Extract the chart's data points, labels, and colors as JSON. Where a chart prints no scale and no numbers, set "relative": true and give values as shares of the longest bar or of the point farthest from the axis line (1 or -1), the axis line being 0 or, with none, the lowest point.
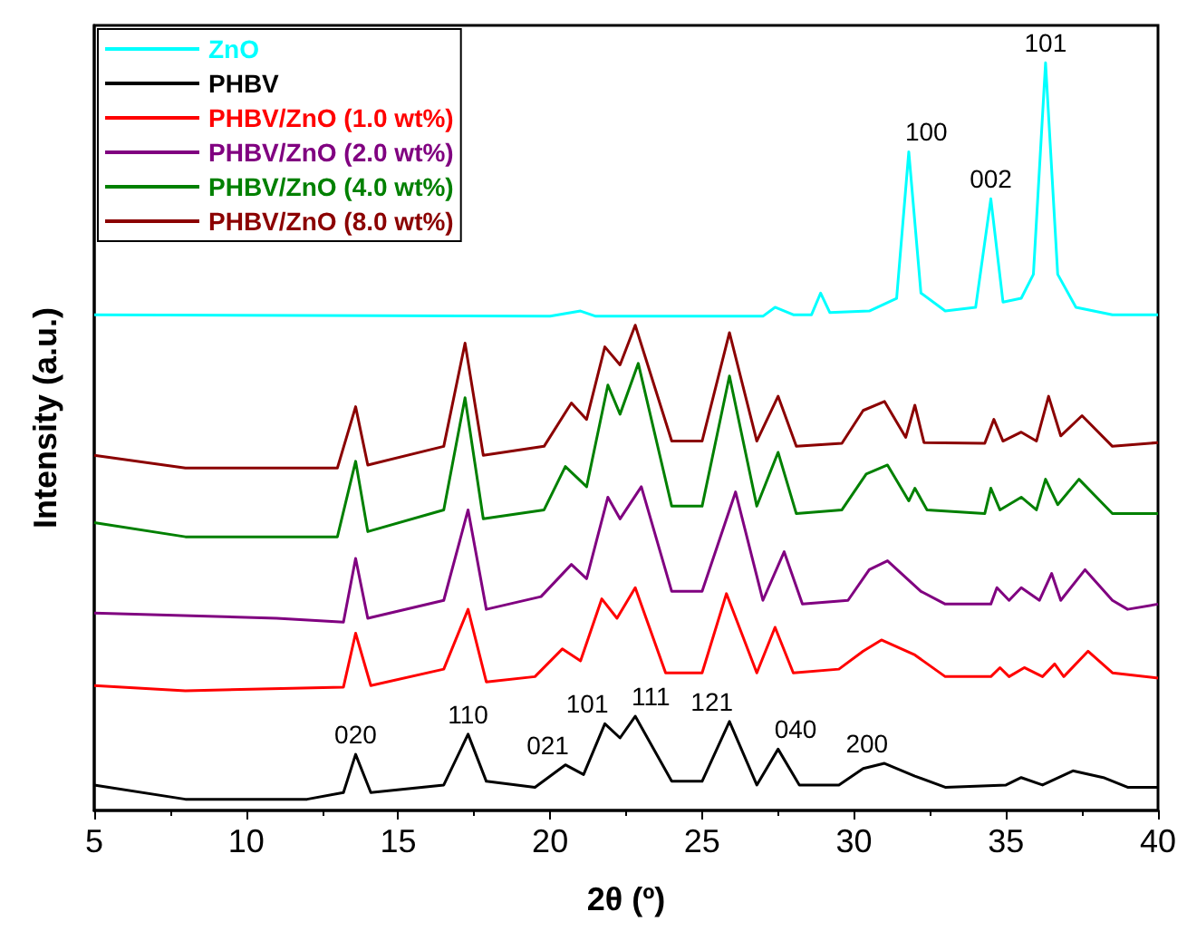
{
  "chart_data": {
    "type": "line",
    "relative": true,
    "xlabel": "2θ (º)",
    "ylabel": "Intensity (a.u.)",
    "xlim": [
      5,
      40
    ],
    "xticks": [
      5,
      10,
      15,
      20,
      25,
      30,
      35,
      40
    ],
    "grid": false,
    "legend": "top left",
    "series": [
      {
        "name": "ZnO",
        "color": "#00ffff",
        "x": [
          5,
          20,
          21,
          21.5,
          27,
          27.4,
          28,
          28.6,
          28.9,
          29.2,
          30.5,
          31.4,
          31.8,
          32.2,
          33,
          34,
          34.5,
          34.9,
          35.5,
          35.9,
          36.3,
          36.7,
          37.3,
          38.5,
          40
        ],
        "values": [
          0.663,
          0.661,
          0.668,
          0.661,
          0.661,
          0.673,
          0.663,
          0.663,
          0.692,
          0.666,
          0.668,
          0.685,
          0.881,
          0.692,
          0.668,
          0.673,
          0.818,
          0.68,
          0.685,
          0.717,
          1.0,
          0.717,
          0.673,
          0.663,
          0.663
        ]
      },
      {
        "name": "PHBV",
        "color": "#000000",
        "x": [
          5,
          8,
          12,
          13.2,
          13.6,
          14.1,
          16.5,
          17.3,
          17.9,
          19.5,
          20.5,
          21.1,
          21.8,
          22.3,
          22.8,
          24,
          25,
          25.9,
          26.8,
          27.5,
          28.2,
          29.5,
          30.3,
          31,
          32,
          33,
          35,
          35.5,
          36.2,
          37.2,
          38.2,
          39,
          40
        ],
        "values": [
          0.034,
          0.015,
          0.015,
          0.024,
          0.075,
          0.024,
          0.034,
          0.102,
          0.039,
          0.031,
          0.061,
          0.048,
          0.116,
          0.097,
          0.126,
          0.039,
          0.039,
          0.119,
          0.034,
          0.082,
          0.034,
          0.034,
          0.056,
          0.063,
          0.046,
          0.031,
          0.034,
          0.044,
          0.034,
          0.053,
          0.044,
          0.031,
          0.031
        ]
      },
      {
        "name": "PHBV/ZnO (1.0 wt%)",
        "color": "#ff0000",
        "x": [
          5,
          8,
          13.2,
          13.6,
          14.1,
          16.5,
          17.3,
          17.9,
          19.5,
          20.4,
          21,
          21.7,
          22.2,
          22.8,
          23.8,
          25,
          25.8,
          26.8,
          27.4,
          28,
          29.5,
          30.3,
          30.9,
          32,
          33,
          34.5,
          34.8,
          35.1,
          35.6,
          36.2,
          36.6,
          36.9,
          37.7,
          38.5,
          40
        ],
        "values": [
          0.167,
          0.16,
          0.165,
          0.237,
          0.167,
          0.189,
          0.269,
          0.172,
          0.179,
          0.216,
          0.2,
          0.283,
          0.257,
          0.298,
          0.184,
          0.184,
          0.29,
          0.184,
          0.245,
          0.184,
          0.189,
          0.213,
          0.228,
          0.208,
          0.179,
          0.179,
          0.191,
          0.179,
          0.191,
          0.179,
          0.196,
          0.179,
          0.213,
          0.184,
          0.177
        ]
      },
      {
        "name": "PHBV/ZnO (2.0 wt%)",
        "color": "#800080",
        "x": [
          5,
          11,
          13.2,
          13.6,
          14,
          16.5,
          17.3,
          17.9,
          19.7,
          20.7,
          21.2,
          21.9,
          22.3,
          23,
          24,
          25,
          26.1,
          27,
          27.7,
          28.3,
          29.8,
          30.5,
          31.1,
          32.2,
          33,
          34.5,
          34.7,
          35.1,
          35.5,
          36.1,
          36.5,
          36.8,
          37.6,
          38.5,
          39,
          40
        ],
        "values": [
          0.264,
          0.257,
          0.252,
          0.337,
          0.257,
          0.281,
          0.402,
          0.269,
          0.286,
          0.329,
          0.31,
          0.419,
          0.39,
          0.433,
          0.293,
          0.293,
          0.426,
          0.281,
          0.346,
          0.276,
          0.281,
          0.322,
          0.334,
          0.293,
          0.276,
          0.276,
          0.298,
          0.281,
          0.298,
          0.281,
          0.317,
          0.281,
          0.322,
          0.281,
          0.269,
          0.276
        ]
      },
      {
        "name": "PHBV/ZnO (4.0 wt%)",
        "color": "#008000",
        "x": [
          5,
          8,
          13,
          13.6,
          14,
          16.5,
          17.2,
          17.8,
          19.8,
          20.5,
          21.2,
          21.9,
          22.3,
          22.9,
          24,
          25,
          25.9,
          26.8,
          27.5,
          28.1,
          29.6,
          30.4,
          31.1,
          31.8,
          32,
          32.4,
          34.3,
          34.5,
          34.8,
          35.5,
          36,
          36.3,
          36.7,
          37.4,
          38.5,
          40
        ],
        "values": [
          0.385,
          0.366,
          0.366,
          0.467,
          0.373,
          0.402,
          0.552,
          0.39,
          0.402,
          0.46,
          0.433,
          0.569,
          0.53,
          0.598,
          0.407,
          0.407,
          0.581,
          0.407,
          0.479,
          0.397,
          0.402,
          0.45,
          0.462,
          0.414,
          0.431,
          0.402,
          0.397,
          0.431,
          0.402,
          0.419,
          0.402,
          0.443,
          0.409,
          0.443,
          0.397,
          0.397
        ]
      },
      {
        "name": "PHBV/ZnO (8.0 wt%)",
        "color": "#8b0000",
        "x": [
          5,
          8,
          13,
          13.6,
          14,
          16.5,
          17.2,
          17.8,
          19.8,
          20.7,
          21.2,
          21.8,
          22.3,
          22.8,
          24,
          25,
          25.9,
          26.8,
          27.5,
          28.1,
          29.6,
          30.3,
          31,
          31.7,
          32,
          32.3,
          34.3,
          34.6,
          34.9,
          35.5,
          36,
          36.4,
          36.8,
          37.5,
          38.5,
          40
        ],
        "values": [
          0.475,
          0.458,
          0.458,
          0.54,
          0.462,
          0.487,
          0.625,
          0.475,
          0.487,
          0.545,
          0.523,
          0.62,
          0.596,
          0.649,
          0.494,
          0.494,
          0.639,
          0.494,
          0.554,
          0.487,
          0.491,
          0.535,
          0.547,
          0.499,
          0.542,
          0.492,
          0.491,
          0.523,
          0.494,
          0.506,
          0.494,
          0.554,
          0.501,
          0.528,
          0.487,
          0.492
        ]
      }
    ],
    "annotations": [
      {
        "text": "020",
        "x": 13.6,
        "y": 0.075
      },
      {
        "text": "110",
        "x": 17.3,
        "y": 0.102
      },
      {
        "text": "021",
        "x": 20.5,
        "y": 0.061
      },
      {
        "text": "101",
        "x": 21.8,
        "y": 0.116
      },
      {
        "text": "111",
        "x": 22.8,
        "y": 0.126
      },
      {
        "text": "121",
        "x": 25.9,
        "y": 0.119
      },
      {
        "text": "040",
        "x": 27.5,
        "y": 0.082
      },
      {
        "text": "200",
        "x": 31,
        "y": 0.063
      },
      {
        "text": "100",
        "x": 31.8,
        "y": 0.881
      },
      {
        "text": "002",
        "x": 34.5,
        "y": 0.818
      },
      {
        "text": "101",
        "x": 36.3,
        "y": 1.0
      }
    ]
  }
}
